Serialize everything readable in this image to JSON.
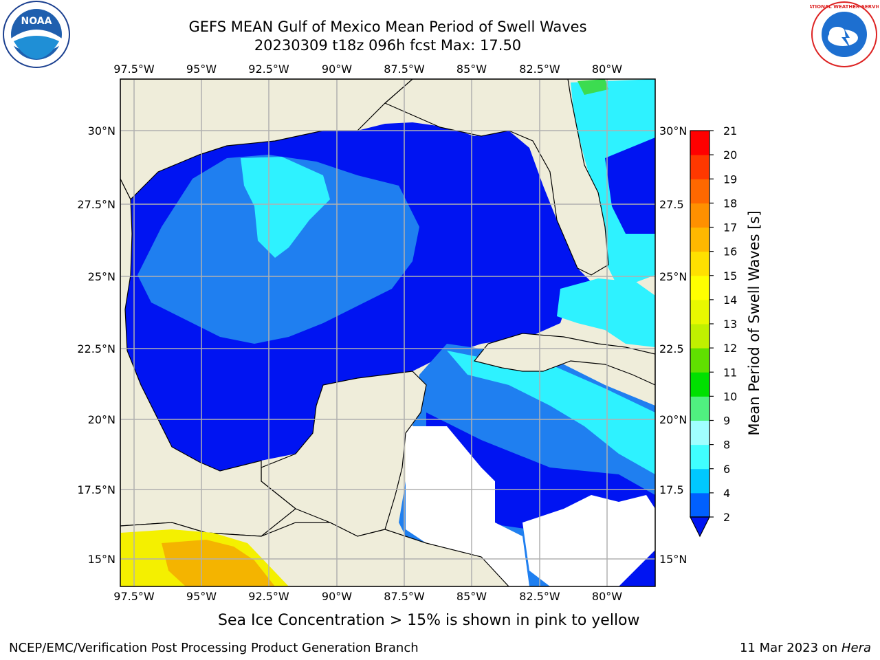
{
  "title": {
    "line1": "GEFS MEAN Gulf of Mexico Mean Period of Swell Waves",
    "line2": "20230309 t18z 096h fcst   Max: 17.50"
  },
  "map": {
    "lon_ticks": [
      "97.5°W",
      "95°W",
      "92.5°W",
      "90°W",
      "87.5°W",
      "85°W",
      "82.5°W",
      "80°W"
    ],
    "lat_ticks_left": [
      "30°N",
      "27.5°N",
      "25°N",
      "22.5°N",
      "20°N",
      "17.5°N",
      "15°N"
    ],
    "lat_ticks_right": [
      "30°N",
      "27.5",
      "25°N",
      "22.5",
      "20°N",
      "17.5",
      "15°N"
    ],
    "colors": {
      "land": "#efedda",
      "ocean_low": "#0014f2",
      "ocean_mid": "#1f7ff0",
      "ocean_cyan": "#2ef2ff",
      "grid": "#b0b0b0"
    }
  },
  "colorbar": {
    "label": "Mean Period of Swell Waves [s]",
    "ticks": [
      "2",
      "4",
      "6",
      "8",
      "9",
      "10",
      "11",
      "12",
      "13",
      "14",
      "15",
      "16",
      "17",
      "18",
      "19",
      "20",
      "21"
    ],
    "colors": [
      "#0060ff",
      "#00c8ff",
      "#40ffff",
      "#a0ffff",
      "#50f080",
      "#00e000",
      "#60e000",
      "#c0f000",
      "#e8f800",
      "#ffff00",
      "#ffe000",
      "#ffb800",
      "#ff9000",
      "#ff6800",
      "#ff3800",
      "#ff0000"
    ],
    "extend_color": "#0014f2"
  },
  "footer": {
    "ice_note": "Sea Ice Concentration > 15% is shown in pink to yellow",
    "credit": "NCEP/EMC/Verification Post Processing Product Generation Branch",
    "date_prefix": "11 Mar 2023 on ",
    "date_host": "Hera"
  },
  "logos": {
    "left": "NOAA",
    "right": "NATIONAL WEATHER SERVICE"
  }
}
